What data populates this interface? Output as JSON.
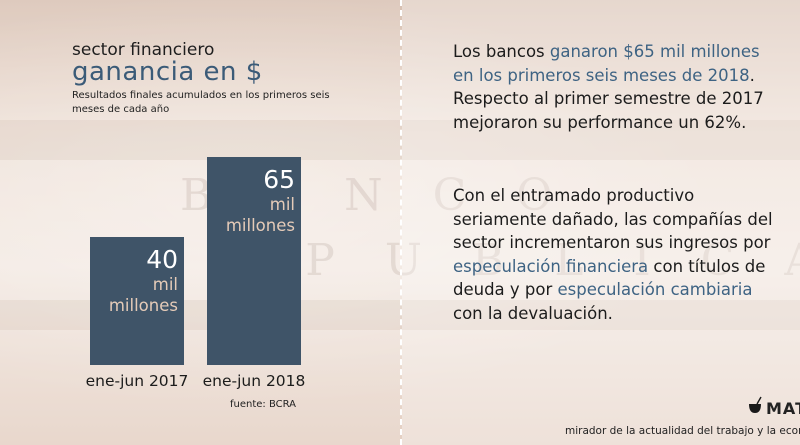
{
  "left": {
    "title_line1": "sector financiero",
    "title_line2": "ganancia en $",
    "subtitle": "Resultados finales acumulados en los primeros seis meses de cada año",
    "source": "fuente: BCRA"
  },
  "chart_data": {
    "type": "bar",
    "categories": [
      "ene-jun 2017",
      "ene-jun 2018"
    ],
    "values": [
      40,
      65
    ],
    "value_labels": [
      "40",
      "65"
    ],
    "unit_lines": [
      "mil",
      "millones"
    ],
    "unit": "mil millones de $",
    "title": "ganancia en $",
    "ylim": [
      0,
      75
    ],
    "bar_color": "#3f5468",
    "value_color": "#ffffff",
    "unit_color": "#e5cbb8"
  },
  "right": {
    "p1": {
      "a": "Los bancos ",
      "hl": "ganaron $65 mil millones en los primeros seis meses de 2018",
      "b": ". Respecto al primer semestre de 2017 mejoraron su performance un 62%."
    },
    "p2": {
      "a": "Con el entramado productivo seriamente dañado, las compañías del sector incrementaron sus ingresos por ",
      "hl1": "especulación financiera",
      "b": " con títulos de deuda y por ",
      "hl2": "especulación cambiaria",
      "c": " con la devaluación."
    }
  },
  "brand": {
    "logo_text": "MAT",
    "tagline": "mirador de la actualidad del trabajo y la econom"
  },
  "colors": {
    "accent": "#3e6383",
    "bar": "#3f5468"
  }
}
